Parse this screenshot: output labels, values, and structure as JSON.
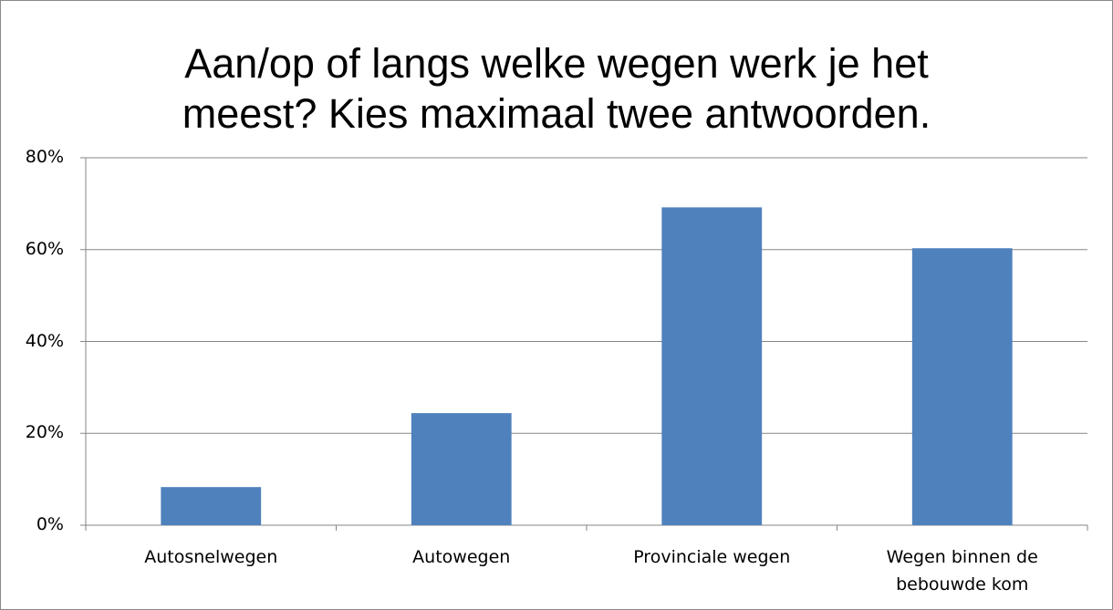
{
  "chart_data": {
    "type": "bar",
    "title": "Aan/op of langs welke wegen werk je het meest? Kies maximaal twee antwoorden.",
    "categories": [
      "Autosnelwegen",
      "Autowegen",
      "Provinciale wegen",
      "Wegen binnen de bebouwde kom"
    ],
    "values": [
      8.3,
      24.4,
      69.2,
      60.3
    ],
    "color": "#4f81bd",
    "ylim": [
      0,
      80
    ],
    "yticks": [
      {
        "value": 0,
        "label": "0%"
      },
      {
        "value": 20,
        "label": "20%"
      },
      {
        "value": 40,
        "label": "40%"
      },
      {
        "value": 60,
        "label": "60%"
      },
      {
        "value": 80,
        "label": "80%"
      }
    ],
    "grid": true
  }
}
